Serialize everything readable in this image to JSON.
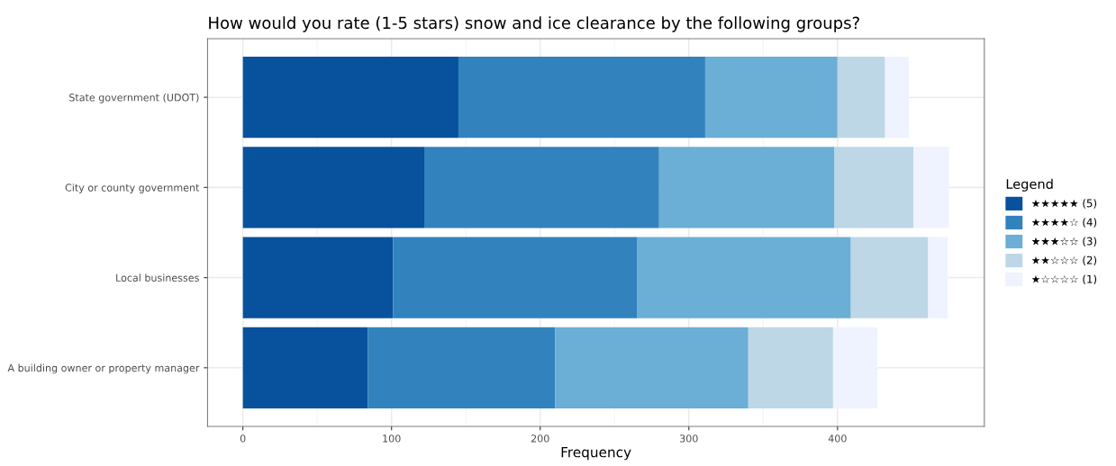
{
  "chart_data": {
    "type": "bar",
    "orientation": "horizontal",
    "stacked": true,
    "title": "How would you rate (1-5 stars) snow and ice clearance by the following groups?",
    "xlabel": "Frequency",
    "legend_title": "Legend",
    "legend": "right",
    "grid": true,
    "categories": [
      "State government (UDOT)",
      "City or county government",
      "Local businesses",
      "A building owner or property manager"
    ],
    "xlim": [
      -23.75,
      498.75
    ],
    "xticks": [
      0,
      100,
      200,
      300,
      400
    ],
    "series": [
      {
        "name": "★★★★★ (5)",
        "color": "#08519c",
        "values": [
          145,
          122,
          101,
          84
        ]
      },
      {
        "name": "★★★★☆ (4)",
        "color": "#3182bd",
        "values": [
          166,
          158,
          164,
          126
        ]
      },
      {
        "name": "★★★☆☆ (3)",
        "color": "#6baed6",
        "values": [
          89,
          118,
          144,
          130
        ]
      },
      {
        "name": "★★☆☆☆ (2)",
        "color": "#bdd7e7",
        "values": [
          32,
          53,
          52,
          57
        ]
      },
      {
        "name": "★☆☆☆☆ (1)",
        "color": "#eff3ff",
        "values": [
          16,
          24,
          13,
          30
        ]
      }
    ]
  }
}
